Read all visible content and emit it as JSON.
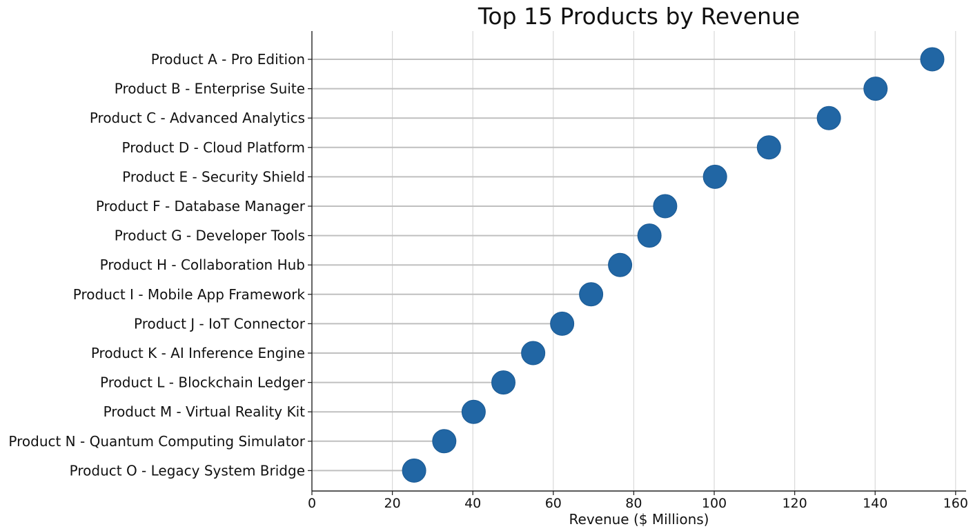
{
  "chart_data": {
    "type": "lollipop",
    "title": "Top 15 Products by Revenue",
    "xlabel": "Revenue ($ Millions)",
    "ylabel": "",
    "xlim": [
      0,
      160
    ],
    "xticks": [
      "0",
      "20",
      "40",
      "60",
      "80",
      "100",
      "120",
      "140",
      "160"
    ],
    "grid": "vertical",
    "marker_color": "#2166a4",
    "stem_color": "#bfbfbf",
    "categories": [
      "Product A - Pro Edition",
      "Product B - Enterprise Suite",
      "Product C - Advanced Analytics",
      "Product D - Cloud Platform",
      "Product E - Security Shield",
      "Product F - Database Manager",
      "Product G - Developer Tools",
      "Product H - Collaboration Hub",
      "Product I - Mobile App Framework",
      "Product J - IoT Connector",
      "Product K - AI Inference Engine",
      "Product L - Blockchain Ledger",
      "Product M - Virtual Reality Kit",
      "Product N - Quantum Computing Simulator",
      "Product O - Legacy System Bridge"
    ],
    "values": [
      154.2,
      140.1,
      128.5,
      113.6,
      100.2,
      87.8,
      83.9,
      76.6,
      69.4,
      62.2,
      55.0,
      47.6,
      40.2,
      32.9,
      25.4
    ]
  }
}
